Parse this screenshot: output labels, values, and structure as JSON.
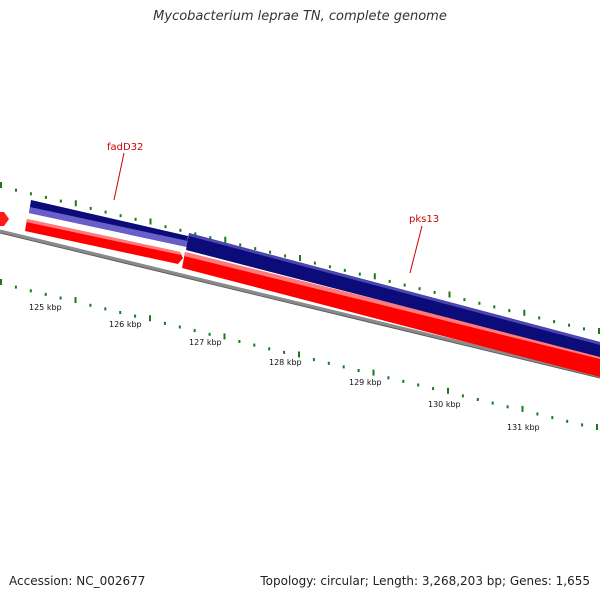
{
  "title": "Mycobacterium leprae TN, complete genome",
  "footer": {
    "accession": "Accession: NC_002677",
    "stats": "Topology: circular; Length: 3,268,203 bp; Genes: 1,655"
  },
  "colors": {
    "forward_gene": "#0b0b7a",
    "forward_gene_light": "#6a5fc8",
    "reverse_gene": "#ff0000",
    "reverse_gene_light": "#ff7070",
    "backbone": "#7a7a7a",
    "gc_marks": "#1a7a1a",
    "label": "#cc0000"
  },
  "genes": [
    {
      "name": "fadD32"
    },
    {
      "name": "pks13"
    }
  ],
  "ticks": [
    {
      "label": "125 kbp"
    },
    {
      "label": "126 kbp"
    },
    {
      "label": "127 kbp"
    },
    {
      "label": "128 kbp"
    },
    {
      "label": "129 kbp"
    },
    {
      "label": "130 kbp"
    },
    {
      "label": "131 kbp"
    }
  ]
}
